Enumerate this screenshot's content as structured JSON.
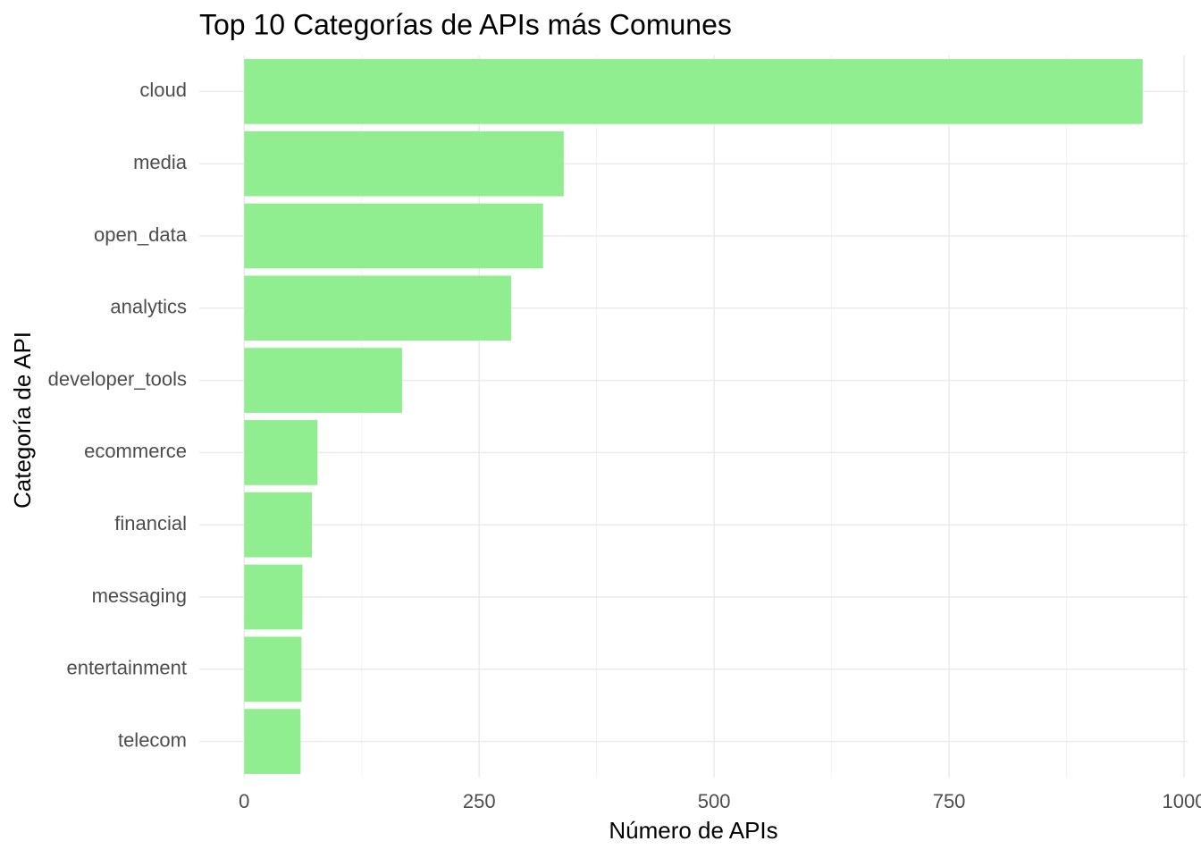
{
  "chart_data": {
    "type": "bar",
    "orientation": "horizontal",
    "title": "Top 10 Categorías de APIs más Comunes",
    "x_label": "Número de APIs",
    "y_label": "Categoría de API",
    "categories": [
      "cloud",
      "media",
      "open_data",
      "analytics",
      "developer_tools",
      "ecommerce",
      "financial",
      "messaging",
      "entertainment",
      "telecom"
    ],
    "values": [
      956,
      340,
      318,
      284,
      168,
      78,
      72,
      62,
      61,
      60
    ],
    "color": "#90ee90",
    "xlim": [
      -47.8,
      1003.8
    ],
    "xticks": [
      0,
      250,
      500,
      750,
      1000
    ],
    "minor_xticks": [
      125,
      375,
      625,
      875
    ],
    "grid": true
  }
}
